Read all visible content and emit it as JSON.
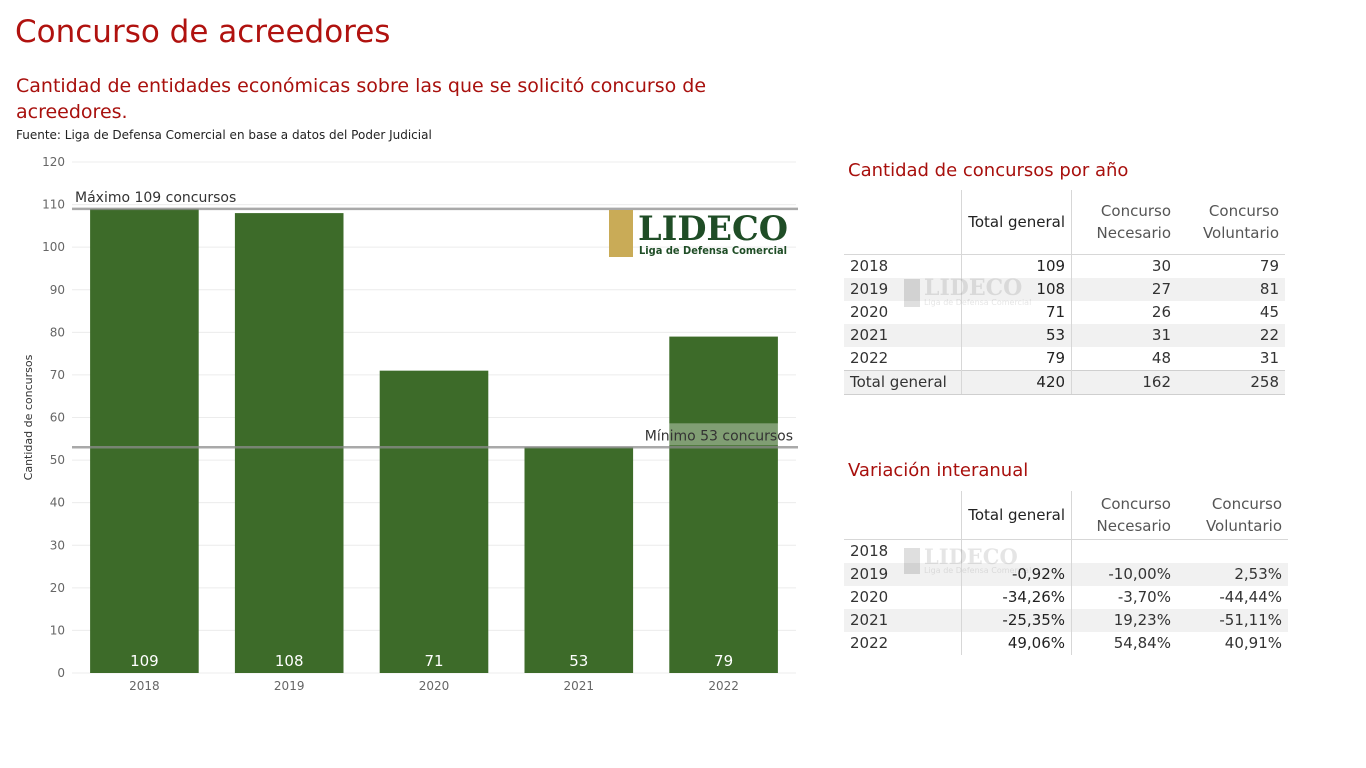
{
  "page": {
    "title": "Concurso de acreedores",
    "subtitle": "Cantidad de entidades económicas sobre las que se solicitó concurso de acreedores.",
    "source": "Fuente: Liga de Defensa Comercial en base a datos del Poder Judicial"
  },
  "logo": {
    "text": "LIDECO",
    "tagline": "Liga de Defensa Comercial"
  },
  "chart_data": {
    "type": "bar",
    "categories": [
      "2018",
      "2019",
      "2020",
      "2021",
      "2022"
    ],
    "values": [
      109,
      108,
      71,
      53,
      79
    ],
    "data_labels": [
      "109",
      "108",
      "71",
      "53",
      "79"
    ],
    "ylabel": "Cantidad de concursos",
    "xlabel": "",
    "ylim": [
      0,
      120
    ],
    "yticks": [
      0,
      10,
      20,
      30,
      40,
      50,
      60,
      70,
      80,
      90,
      100,
      110,
      120
    ],
    "grid": true,
    "bar_color": "#3d6b29",
    "reference_lines": [
      {
        "value": 109,
        "label": "Máximo 109 concursos"
      },
      {
        "value": 53,
        "label": "Mínimo 53 concursos"
      }
    ]
  },
  "table1": {
    "title": "Cantidad de concursos por año",
    "headers": [
      "Total general",
      "Concurso Necesario",
      "Concurso Voluntario"
    ],
    "rows": [
      {
        "year": "2018",
        "total": "109",
        "necesario": "30",
        "voluntario": "79"
      },
      {
        "year": "2019",
        "total": "108",
        "necesario": "27",
        "voluntario": "81"
      },
      {
        "year": "2020",
        "total": "71",
        "necesario": "26",
        "voluntario": "45"
      },
      {
        "year": "2021",
        "total": "53",
        "necesario": "31",
        "voluntario": "22"
      },
      {
        "year": "2022",
        "total": "79",
        "necesario": "48",
        "voluntario": "31"
      }
    ],
    "total_row": {
      "label": "Total general",
      "total": "420",
      "necesario": "162",
      "voluntario": "258"
    }
  },
  "table2": {
    "title": "Variación interanual",
    "headers": [
      "Total general",
      "Concurso Necesario",
      "Concurso Voluntario"
    ],
    "rows": [
      {
        "year": "2018",
        "total": "",
        "necesario": "",
        "voluntario": ""
      },
      {
        "year": "2019",
        "total": "-0,92%",
        "necesario": "-10,00%",
        "voluntario": "2,53%"
      },
      {
        "year": "2020",
        "total": "-34,26%",
        "necesario": "-3,70%",
        "voluntario": "-44,44%"
      },
      {
        "year": "2021",
        "total": "-25,35%",
        "necesario": "19,23%",
        "voluntario": "-51,11%"
      },
      {
        "year": "2022",
        "total": "49,06%",
        "necesario": "54,84%",
        "voluntario": "40,91%"
      }
    ]
  }
}
